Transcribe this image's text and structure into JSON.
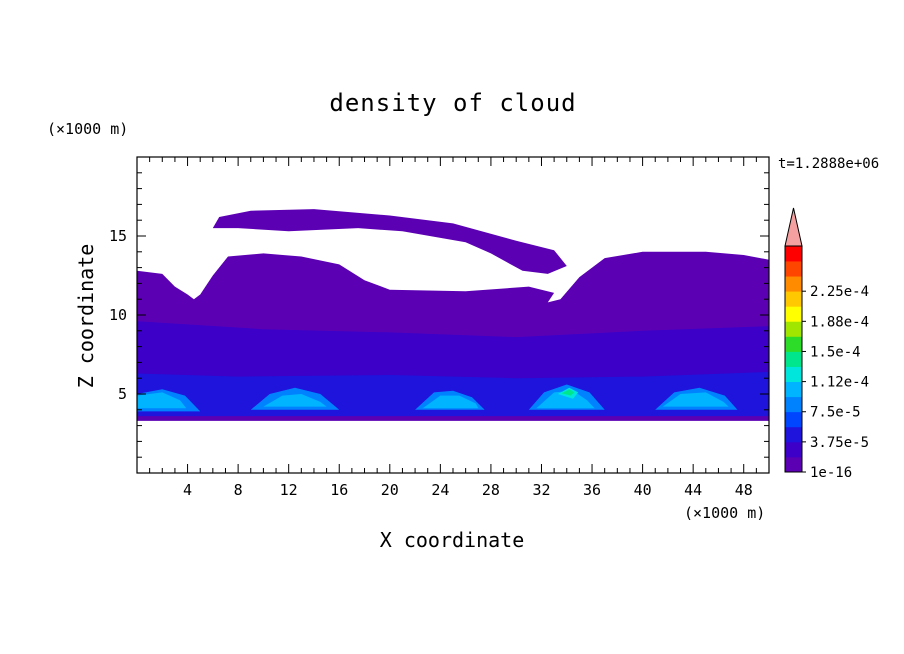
{
  "chart_data": {
    "type": "heatmap",
    "title": "density of cloud",
    "xlabel": "X coordinate",
    "ylabel": "Z coordinate",
    "x_unit": "(×1000 m)",
    "y_unit": "(×1000 m)",
    "time_label": "t=1.2888e+06",
    "xlim": [
      0,
      50
    ],
    "ylim": [
      0,
      20
    ],
    "x_ticks": [
      4,
      8,
      12,
      16,
      20,
      24,
      28,
      32,
      36,
      40,
      44,
      48
    ],
    "y_ticks": [
      5,
      10,
      15
    ],
    "colorbar": {
      "labels": [
        "1e-16",
        "3.75e-5",
        "7.5e-5",
        "1.12e-4",
        "1.5e-4",
        "1.88e-4",
        "2.25e-4"
      ],
      "level_colors": [
        "#5c00b4",
        "#3c00c8",
        "#1e14dc",
        "#0046ff",
        "#0082ff",
        "#00b4ff",
        "#00e6dc",
        "#00e68c",
        "#2ddc28",
        "#a0e600",
        "#ffff00",
        "#ffc800",
        "#ff8c00",
        "#ff4600",
        "#ff0000"
      ],
      "overflow_color": "#f5a0a0"
    },
    "cloud_regions": [
      {
        "level": 0,
        "polygon": [
          [
            6.0,
            15.5
          ],
          [
            6.5,
            16.2
          ],
          [
            9,
            16.6
          ],
          [
            14,
            16.7
          ],
          [
            20,
            16.3
          ],
          [
            25,
            15.8
          ],
          [
            30,
            14.7
          ],
          [
            33,
            14.1
          ],
          [
            34,
            13.1
          ],
          [
            32.5,
            12.6
          ],
          [
            30.5,
            12.8
          ],
          [
            28,
            13.9
          ],
          [
            26,
            14.6
          ],
          [
            21,
            15.3
          ],
          [
            17.5,
            15.5
          ],
          [
            12,
            15.3
          ],
          [
            8,
            15.5
          ]
        ]
      },
      {
        "level": 0,
        "polygon": [
          [
            0,
            12.8
          ],
          [
            2,
            12.6
          ],
          [
            3,
            11.8
          ],
          [
            4,
            11.3
          ],
          [
            4.5,
            11.0
          ],
          [
            5,
            11.3
          ],
          [
            6,
            12.5
          ],
          [
            7.2,
            13.7
          ],
          [
            10,
            13.9
          ],
          [
            13,
            13.7
          ],
          [
            16,
            13.2
          ],
          [
            18,
            12.2
          ],
          [
            20,
            11.6
          ],
          [
            26,
            11.5
          ],
          [
            31,
            11.8
          ],
          [
            33,
            11.4
          ],
          [
            32.5,
            10.8
          ],
          [
            33.5,
            11.0
          ],
          [
            35,
            12.4
          ],
          [
            37,
            13.6
          ],
          [
            40,
            14.0
          ],
          [
            45,
            14.0
          ],
          [
            48,
            13.8
          ],
          [
            50,
            13.5
          ],
          [
            50,
            3.3
          ],
          [
            0,
            3.3
          ]
        ]
      },
      {
        "level": 1,
        "polygon": [
          [
            0,
            9.6
          ],
          [
            10,
            9.1
          ],
          [
            20,
            8.9
          ],
          [
            30,
            8.6
          ],
          [
            40,
            9.0
          ],
          [
            50,
            9.3
          ],
          [
            50,
            5.4
          ],
          [
            0,
            5.4
          ]
        ]
      },
      {
        "level": 2,
        "polygon": [
          [
            0,
            6.3
          ],
          [
            8,
            6.1
          ],
          [
            20,
            6.2
          ],
          [
            30,
            6.0
          ],
          [
            40,
            6.1
          ],
          [
            50,
            6.4
          ],
          [
            50,
            3.6
          ],
          [
            0,
            3.6
          ]
        ]
      },
      {
        "level": 4,
        "polygon": [
          [
            0,
            5.0
          ],
          [
            2,
            5.3
          ],
          [
            3.8,
            4.9
          ],
          [
            5,
            3.9
          ],
          [
            0,
            3.9
          ]
        ]
      },
      {
        "level": 4,
        "polygon": [
          [
            9,
            4.0
          ],
          [
            10.5,
            5.0
          ],
          [
            12.5,
            5.4
          ],
          [
            14.5,
            5.0
          ],
          [
            16,
            4.0
          ]
        ]
      },
      {
        "level": 4,
        "polygon": [
          [
            22,
            4.0
          ],
          [
            23.5,
            5.1
          ],
          [
            25,
            5.2
          ],
          [
            26.5,
            4.8
          ],
          [
            27.5,
            4.0
          ]
        ]
      },
      {
        "level": 4,
        "polygon": [
          [
            31,
            4.0
          ],
          [
            32.2,
            5.1
          ],
          [
            34,
            5.6
          ],
          [
            35.8,
            5.1
          ],
          [
            37,
            4.0
          ]
        ]
      },
      {
        "level": 4,
        "polygon": [
          [
            41,
            4.0
          ],
          [
            42.5,
            5.1
          ],
          [
            44.5,
            5.4
          ],
          [
            46.5,
            4.9
          ],
          [
            47.5,
            4.0
          ]
        ]
      },
      {
        "level": 5,
        "polygon": [
          [
            0,
            4.9
          ],
          [
            2,
            5.1
          ],
          [
            3.4,
            4.6
          ],
          [
            3.9,
            4.1
          ],
          [
            0,
            4.1
          ]
        ]
      },
      {
        "level": 5,
        "polygon": [
          [
            10,
            4.2
          ],
          [
            11.5,
            4.9
          ],
          [
            13,
            5.0
          ],
          [
            14.5,
            4.5
          ],
          [
            15,
            4.2
          ]
        ]
      },
      {
        "level": 5,
        "polygon": [
          [
            22.6,
            4.1
          ],
          [
            24,
            4.9
          ],
          [
            25.5,
            4.9
          ],
          [
            26.8,
            4.4
          ],
          [
            27,
            4.1
          ]
        ]
      },
      {
        "level": 5,
        "polygon": [
          [
            31.6,
            4.1
          ],
          [
            33,
            5.1
          ],
          [
            34.5,
            5.2
          ],
          [
            35.6,
            4.6
          ],
          [
            36.2,
            4.1
          ]
        ]
      },
      {
        "level": 5,
        "polygon": [
          [
            41.6,
            4.2
          ],
          [
            43,
            5.0
          ],
          [
            45,
            5.1
          ],
          [
            46.4,
            4.5
          ],
          [
            46.8,
            4.2
          ]
        ]
      },
      {
        "level": 6,
        "polygon": [
          [
            33.3,
            5.0
          ],
          [
            34.2,
            5.4
          ],
          [
            34.9,
            5.1
          ],
          [
            34.5,
            4.7
          ]
        ]
      },
      {
        "level": 7,
        "polygon": [
          [
            33.6,
            5.05
          ],
          [
            34.2,
            5.3
          ],
          [
            34.6,
            5.1
          ],
          [
            34.3,
            4.9
          ]
        ]
      }
    ]
  }
}
